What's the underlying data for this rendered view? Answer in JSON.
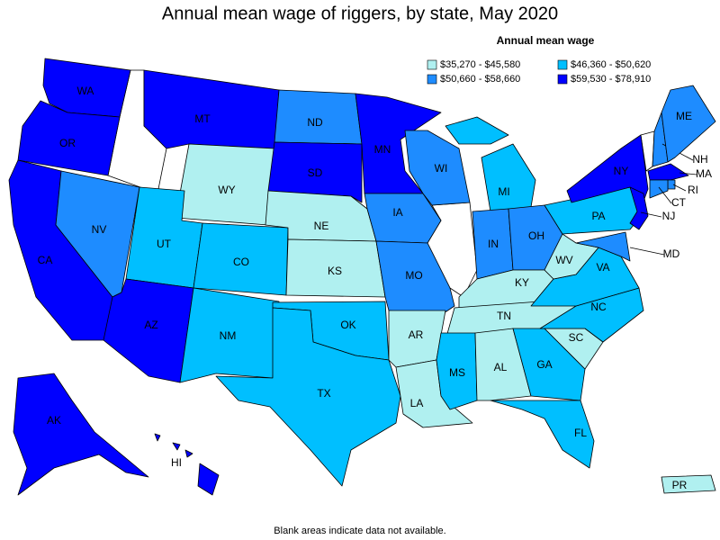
{
  "title": "Annual mean wage of riggers, by state, May 2020",
  "legend": {
    "title": "Annual mean wage",
    "items": [
      {
        "label": "$35,270 - $45,580",
        "min": 35270,
        "max": 45580,
        "color": "#b0f0f0"
      },
      {
        "label": "$46,360 - $50,620",
        "min": 46360,
        "max": 50620,
        "color": "#00bfff"
      },
      {
        "label": "$50,660 - $58,660",
        "min": 50660,
        "max": 58660,
        "color": "#1e8cff"
      },
      {
        "label": "$59,530 - $78,910",
        "min": 59530,
        "max": 78910,
        "color": "#0000ff"
      }
    ]
  },
  "states": [
    {
      "label": "WA",
      "class": 3
    },
    {
      "label": "OR",
      "class": 3
    },
    {
      "label": "CA",
      "class": 3
    },
    {
      "label": "NV",
      "class": 2
    },
    {
      "label": "MT",
      "class": 3
    },
    {
      "label": "WY",
      "class": 0
    },
    {
      "label": "UT",
      "class": 1
    },
    {
      "label": "AZ",
      "class": 3
    },
    {
      "label": "CO",
      "class": 1
    },
    {
      "label": "NM",
      "class": 1
    },
    {
      "label": "ND",
      "class": 2
    },
    {
      "label": "SD",
      "class": 3
    },
    {
      "label": "NE",
      "class": 0
    },
    {
      "label": "KS",
      "class": 0
    },
    {
      "label": "OK",
      "class": 1
    },
    {
      "label": "TX",
      "class": 1
    },
    {
      "label": "MN",
      "class": 3
    },
    {
      "label": "IA",
      "class": 2
    },
    {
      "label": "MO",
      "class": 2
    },
    {
      "label": "AR",
      "class": 0
    },
    {
      "label": "LA",
      "class": 0
    },
    {
      "label": "WI",
      "class": 2
    },
    {
      "label": "MI",
      "class": 1
    },
    {
      "label": "IN",
      "class": 2
    },
    {
      "label": "OH",
      "class": 2
    },
    {
      "label": "KY",
      "class": 0
    },
    {
      "label": "TN",
      "class": 0
    },
    {
      "label": "MS",
      "class": 1
    },
    {
      "label": "AL",
      "class": 0
    },
    {
      "label": "GA",
      "class": 1
    },
    {
      "label": "FL",
      "class": 1
    },
    {
      "label": "SC",
      "class": 0
    },
    {
      "label": "NC",
      "class": 1
    },
    {
      "label": "VA",
      "class": 1
    },
    {
      "label": "WV",
      "class": 0
    },
    {
      "label": "PA",
      "class": 1
    },
    {
      "label": "NY",
      "class": 3
    },
    {
      "label": "NH",
      "class": 2
    },
    {
      "label": "ME",
      "class": 2
    },
    {
      "label": "MA",
      "class": 3
    },
    {
      "label": "RI",
      "class": 2
    },
    {
      "label": "CT",
      "class": 2
    },
    {
      "label": "NJ",
      "class": 3
    },
    {
      "label": "MD",
      "class": 2
    },
    {
      "label": "AK",
      "class": 3
    },
    {
      "label": "HI",
      "class": 3
    },
    {
      "label": "PR",
      "class": 0
    }
  ],
  "footnote": "Blank areas indicate data not available."
}
